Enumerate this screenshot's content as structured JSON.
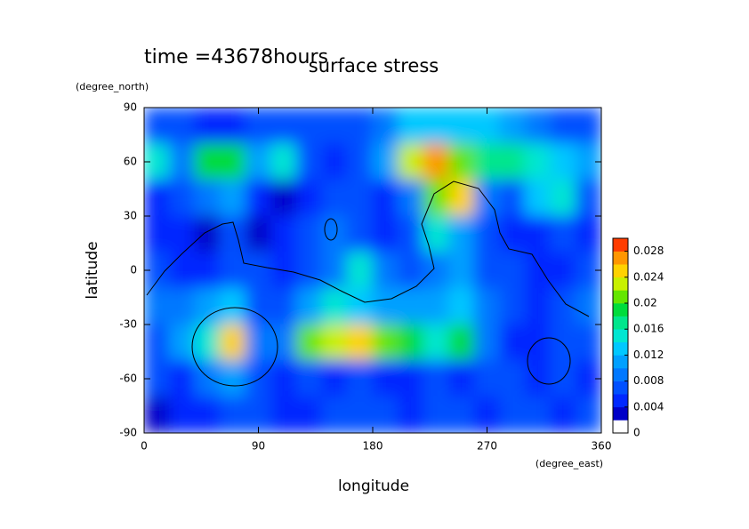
{
  "chart_data": {
    "type": "contour",
    "title": "surface stress",
    "subtitle": "time =43678hours",
    "x_label": "longitude",
    "x_unit": "(degree_east)",
    "y_label": "latitude",
    "y_unit": "(degree_north)",
    "xlim": [
      0,
      360
    ],
    "xticks": [
      0,
      90,
      180,
      270,
      360
    ],
    "ylim": [
      -90,
      90
    ],
    "yticks": [
      -90,
      -60,
      -30,
      0,
      30,
      60,
      90
    ],
    "clim": [
      0,
      0.03
    ],
    "cticks": [
      0,
      0.004,
      0.008,
      0.012,
      0.016,
      0.02,
      0.024,
      0.028
    ],
    "colors": [
      "#ffffff",
      "#0000c8",
      "#0028ff",
      "#0050ff",
      "#0078ff",
      "#00a0ff",
      "#00c8ff",
      "#00e6d2",
      "#00e68c",
      "#00dc3c",
      "#64e600",
      "#c8f000",
      "#ffd200",
      "#ff9600",
      "#ff3c00"
    ],
    "x": [
      10,
      30,
      50,
      70,
      90,
      110,
      130,
      150,
      170,
      190,
      210,
      230,
      250,
      270,
      290,
      310,
      330,
      350
    ],
    "y": [
      80,
      60,
      40,
      20,
      0,
      -20,
      -40,
      -60,
      -80
    ],
    "z": [
      [
        0.006,
        0.006,
        0.004,
        0.004,
        0.006,
        0.006,
        0.006,
        0.006,
        0.006,
        0.008,
        0.012,
        0.012,
        0.012,
        0.012,
        0.01,
        0.008,
        0.006,
        0.006
      ],
      [
        0.014,
        0.008,
        0.018,
        0.018,
        0.01,
        0.014,
        0.006,
        0.004,
        0.006,
        0.01,
        0.022,
        0.026,
        0.02,
        0.016,
        0.016,
        0.014,
        0.012,
        0.01
      ],
      [
        0.004,
        0.006,
        0.008,
        0.01,
        0.004,
        0.002,
        0.004,
        0.006,
        0.006,
        0.004,
        0.008,
        0.02,
        0.024,
        0.008,
        0.006,
        0.012,
        0.014,
        0.006
      ],
      [
        0.004,
        0.004,
        0.002,
        0.006,
        0.002,
        0.004,
        0.006,
        0.008,
        0.006,
        0.004,
        0.006,
        0.014,
        0.01,
        0.006,
        0.004,
        0.004,
        0.006,
        0.004
      ],
      [
        0.006,
        0.004,
        0.004,
        0.006,
        0.006,
        0.004,
        0.006,
        0.008,
        0.014,
        0.008,
        0.006,
        0.008,
        0.01,
        0.006,
        0.006,
        0.004,
        0.004,
        0.006
      ],
      [
        0.008,
        0.008,
        0.01,
        0.012,
        0.006,
        0.006,
        0.01,
        0.014,
        0.012,
        0.01,
        0.01,
        0.01,
        0.012,
        0.008,
        0.006,
        0.004,
        0.006,
        0.008
      ],
      [
        0.006,
        0.01,
        0.014,
        0.024,
        0.008,
        0.008,
        0.02,
        0.022,
        0.024,
        0.02,
        0.018,
        0.014,
        0.018,
        0.008,
        0.004,
        0.004,
        0.006,
        0.006
      ],
      [
        0.006,
        0.004,
        0.008,
        0.01,
        0.006,
        0.004,
        0.006,
        0.004,
        0.006,
        0.004,
        0.004,
        0.006,
        0.004,
        0.006,
        0.006,
        0.004,
        0.006,
        0.004
      ],
      [
        0.002,
        0.004,
        0.004,
        0.006,
        0.006,
        0.004,
        0.004,
        0.006,
        0.006,
        0.006,
        0.004,
        0.006,
        0.006,
        0.004,
        0.006,
        0.006,
        0.004,
        0.006
      ]
    ]
  }
}
